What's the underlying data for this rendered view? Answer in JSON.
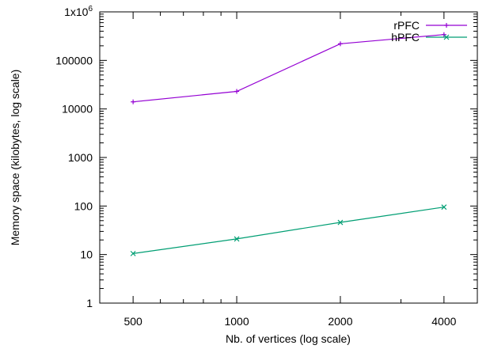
{
  "chart_data": {
    "type": "line",
    "title": "",
    "xlabel": "Nb. of vertices (log scale)",
    "ylabel": "Memory space (kilobytes, log scale)",
    "x_scale": "log",
    "y_scale": "log",
    "xlim": [
      400,
      5000
    ],
    "ylim": [
      1,
      1000000
    ],
    "x_ticks": [
      {
        "value": 500,
        "label": "500"
      },
      {
        "value": 1000,
        "label": "1000"
      },
      {
        "value": 2000,
        "label": "2000"
      },
      {
        "value": 4000,
        "label": "4000"
      }
    ],
    "y_ticks": [
      {
        "value": 1,
        "label": "1"
      },
      {
        "value": 10,
        "label": "10"
      },
      {
        "value": 100,
        "label": "100"
      },
      {
        "value": 1000,
        "label": "1000"
      },
      {
        "value": 10000,
        "label": "10000"
      },
      {
        "value": 100000,
        "label": "100000"
      },
      {
        "value": 1000000,
        "label": "1x10",
        "sup": "6"
      }
    ],
    "grid": false,
    "legend_position": "top-right",
    "series": [
      {
        "name": "rPFC",
        "color": "#9400d3",
        "marker": "plus",
        "x": [
          500,
          1000,
          2000,
          4000
        ],
        "y": [
          14000,
          23000,
          220000,
          340000
        ]
      },
      {
        "name": "hPFC",
        "color": "#009e73",
        "marker": "cross",
        "x": [
          500,
          1000,
          2000,
          4000
        ],
        "y": [
          10.5,
          21,
          46,
          95
        ]
      }
    ]
  }
}
